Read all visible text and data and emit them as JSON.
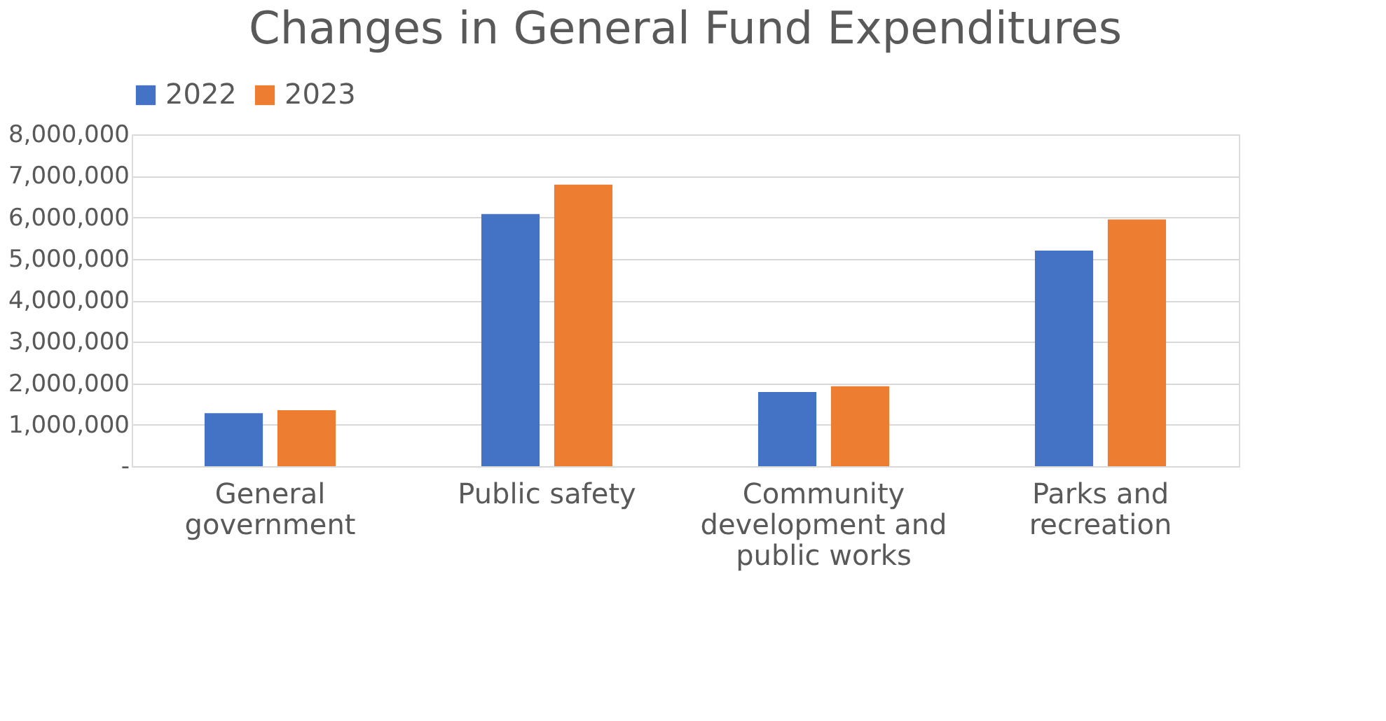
{
  "chart_data": {
    "type": "bar",
    "title": "Changes in General Fund Expenditures",
    "categories": [
      "General government",
      "Public safety",
      "Community development and public works",
      "Parks and recreation"
    ],
    "series": [
      {
        "name": "2022",
        "color": "#4472c4",
        "values": [
          1280000,
          6080000,
          1790000,
          5200000
        ]
      },
      {
        "name": "2023",
        "color": "#ed7d31",
        "values": [
          1350000,
          6790000,
          1930000,
          5950000
        ]
      }
    ],
    "ylim": [
      0,
      8000000
    ],
    "yticks": [
      {
        "value": 0,
        "label": "-"
      },
      {
        "value": 1000000,
        "label": "1,000,000"
      },
      {
        "value": 2000000,
        "label": "2,000,000"
      },
      {
        "value": 3000000,
        "label": "3,000,000"
      },
      {
        "value": 4000000,
        "label": "4,000,000"
      },
      {
        "value": 5000000,
        "label": "5,000,000"
      },
      {
        "value": 6000000,
        "label": "6,000,000"
      },
      {
        "value": 7000000,
        "label": "7,000,000"
      },
      {
        "value": 8000000,
        "label": "8,000,000"
      }
    ],
    "grid": "y",
    "legend": "top"
  }
}
